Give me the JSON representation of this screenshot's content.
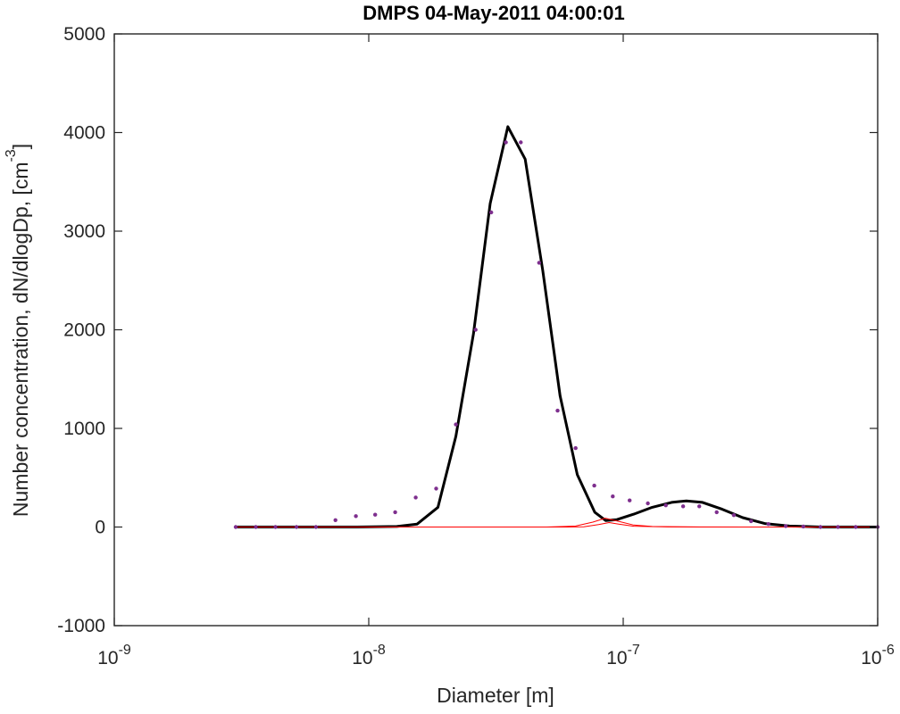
{
  "chart_data": {
    "type": "line",
    "title": "DMPS 04-May-2011 04:00:01",
    "xlabel": "Diameter [m]",
    "ylabel": "Number concentration, dN/dlogDp, [cm",
    "ylabel_superscript": "-3",
    "ylabel_close": "]",
    "x_scale": "log",
    "xlim": [
      1e-09,
      1e-06
    ],
    "ylim": [
      -1000,
      5000
    ],
    "x_ticks": [
      {
        "value": 1e-09,
        "base": "10",
        "exp": "-9"
      },
      {
        "value": 1e-08,
        "base": "10",
        "exp": "-8"
      },
      {
        "value": 1e-07,
        "base": "10",
        "exp": "-7"
      },
      {
        "value": 1e-06,
        "base": "10",
        "exp": "-6"
      }
    ],
    "y_ticks": [
      -1000,
      0,
      1000,
      2000,
      3000,
      4000,
      5000
    ],
    "grid": false,
    "legend": "none",
    "colors": {
      "fit": "#000000",
      "modes": "#ff0000",
      "measured": "#7e2f8e"
    },
    "series": [
      {
        "style": "points",
        "role": "measured",
        "x": [
          3e-09,
          3.6e-09,
          4.3e-09,
          5.2e-09,
          6.2e-09,
          7.4e-09,
          8.9e-09,
          1.06e-08,
          1.27e-08,
          1.53e-08,
          1.84e-08,
          2.2e-08,
          2.63e-08,
          3.03e-08,
          3.46e-08,
          3.96e-08,
          4.67e-08,
          5.52e-08,
          6.5e-08,
          7.7e-08,
          9.1e-08,
          1.06e-07,
          1.25e-07,
          1.47e-07,
          1.72e-07,
          1.99e-07,
          2.33e-07,
          2.72e-07,
          3.18e-07,
          3.72e-07,
          4.35e-07,
          5.1e-07,
          5.96e-07,
          6.98e-07,
          8.2e-07,
          1e-06
        ],
        "y": [
          0,
          0,
          0,
          0,
          0,
          70,
          110,
          125,
          150,
          300,
          390,
          1040,
          2000,
          3190,
          3900,
          3900,
          2680,
          1180,
          800,
          420,
          310,
          270,
          240,
          220,
          210,
          210,
          150,
          120,
          60,
          30,
          10,
          5,
          0,
          0,
          0,
          0
        ]
      },
      {
        "style": "line",
        "role": "fit",
        "x": [
          3e-09,
          4e-09,
          6e-09,
          9e-09,
          1.29e-08,
          1.55e-08,
          1.87e-08,
          2.2e-08,
          2.58e-08,
          3e-08,
          3.52e-08,
          4.12e-08,
          4.83e-08,
          5.65e-08,
          6.6e-08,
          7.73e-08,
          8.54e-08,
          9.44e-08,
          1.1e-07,
          1.3e-07,
          1.55e-07,
          1.77e-07,
          2.05e-07,
          2.45e-07,
          2.95e-07,
          3.6e-07,
          4.5e-07,
          6e-07,
          8e-07,
          1e-06
        ],
        "y": [
          0,
          0,
          0,
          0,
          5,
          30,
          200,
          920,
          1960,
          3280,
          4060,
          3730,
          2600,
          1330,
          530,
          150,
          65,
          75,
          130,
          200,
          250,
          265,
          250,
          180,
          95,
          35,
          10,
          0,
          0,
          0
        ]
      },
      {
        "style": "thin-line",
        "role": "mode",
        "x": [
          3e-09,
          1.2e-08,
          2e-08,
          5e-08,
          6.5e-08,
          7.6e-08,
          8.5e-08,
          9.5e-08,
          1.1e-07,
          1.3e-07,
          2e-07,
          1e-06
        ],
        "y": [
          0,
          0,
          0,
          0,
          10,
          50,
          90,
          60,
          20,
          5,
          0,
          0
        ]
      },
      {
        "style": "thin-line",
        "role": "mode",
        "x": [
          3e-09,
          6e-08,
          7e-08,
          8e-08,
          8.8e-08,
          9.6e-08,
          1.1e-07,
          1.5e-07,
          3e-07,
          1e-06
        ],
        "y": [
          0,
          0,
          3,
          25,
          45,
          30,
          8,
          1,
          0,
          0
        ]
      }
    ]
  }
}
